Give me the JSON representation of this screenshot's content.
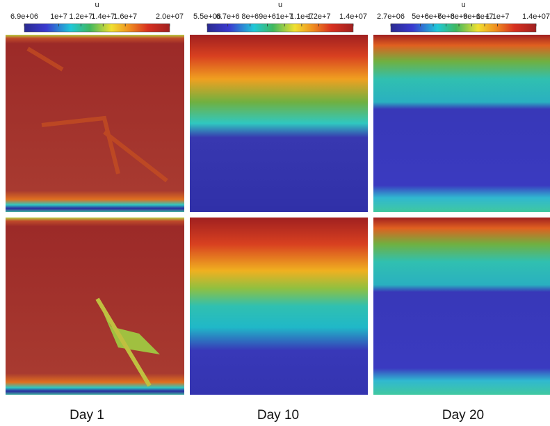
{
  "colorbars": [
    {
      "title": "u",
      "ticks": [
        "6.9e+06",
        "1e+7",
        "1.2e+7",
        "1.4e+7",
        "1.6e+7",
        "2.0e+07"
      ]
    },
    {
      "title": "u",
      "ticks": [
        "5.5e+06",
        "6.7e+6",
        "8e+6",
        "9e+6",
        "1e+7",
        "1.1e+7",
        "1.2e+7",
        "1.4e+07"
      ]
    },
    {
      "title": "u",
      "ticks": [
        "2.7e+06",
        "5e+6",
        "6e+6",
        "7e+6",
        "8e+6",
        "9e+6",
        "1e+7",
        "1.1e+7",
        "1.4e+07"
      ]
    }
  ],
  "column_labels": [
    "Day 1",
    "Day 10",
    "Day 20"
  ]
}
